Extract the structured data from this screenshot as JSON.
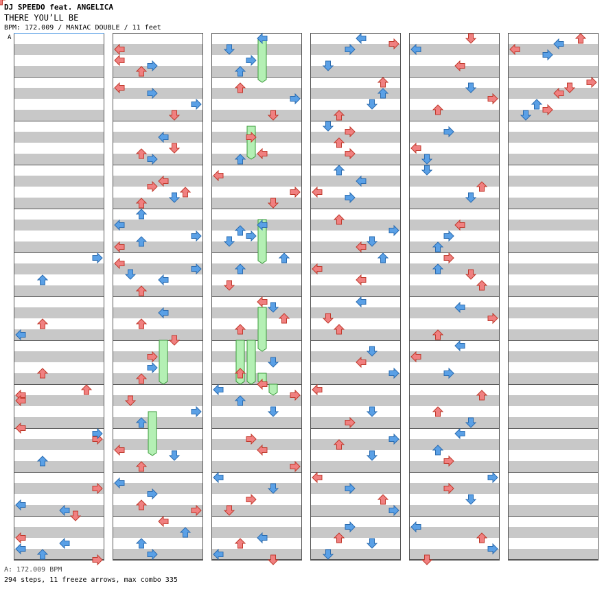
{
  "header": {
    "artist": "DJ SPEEDO feat. ANGELICA",
    "title": "THERE YOU’LL BE",
    "meta": "BPM: 172.009 / MANIAC DOUBLE / 11 feet",
    "bpm_marker": "A"
  },
  "footer": {
    "bpm_line": "A: 172.009 BPM",
    "stats": "294 steps, 11 freeze arrows, max combo 335"
  },
  "chart_data": {
    "type": "step-chart",
    "style": "double",
    "columns": 6,
    "measures_per_column": 12,
    "lanes": 8,
    "colors": {
      "quarter": "#f08080",
      "eighth": "#5aa0e6",
      "freeze": "#b4f0b4",
      "stripe": "#c8c8c8"
    },
    "notes": [
      [
        0,
        5,
        0,
        8,
        7
      ],
      [
        0,
        5,
        4,
        8,
        2
      ],
      [
        0,
        5,
        5,
        0
      ],
      [
        0,
        6,
        4,
        4,
        2
      ],
      [
        0,
        6,
        6,
        8,
        0
      ],
      [
        0,
        7,
        5,
        4,
        2
      ],
      [
        0,
        8,
        0,
        4,
        6
      ],
      [
        0,
        8,
        1,
        4,
        0
      ],
      [
        0,
        8,
        2,
        4,
        0
      ],
      [
        0,
        8,
        7,
        16,
        0
      ],
      [
        0,
        9,
        1,
        4,
        7
      ],
      [
        0,
        9,
        0,
        8,
        7
      ],
      [
        0,
        9,
        5,
        8,
        2
      ],
      [
        0,
        10,
        2,
        4,
        7
      ],
      [
        0,
        10,
        7,
        16,
        5
      ],
      [
        0,
        10,
        5,
        8,
        0
      ],
      [
        0,
        10,
        6,
        8,
        4
      ],
      [
        0,
        11,
        7,
        16,
        7
      ],
      [
        0,
        11,
        4,
        8,
        4
      ],
      [
        0,
        11,
        3,
        16,
        0
      ],
      [
        0,
        11,
        6,
        8,
        2
      ],
      [
        0,
        11,
        5,
        8,
        0
      ],
      [
        1,
        0,
        2,
        16,
        0
      ],
      [
        1,
        0,
        4,
        16,
        0
      ],
      [
        1,
        0,
        5,
        8,
        3
      ],
      [
        1,
        0,
        6,
        16,
        2
      ],
      [
        1,
        1,
        1,
        16,
        0
      ],
      [
        1,
        1,
        2,
        8,
        3
      ],
      [
        1,
        1,
        4,
        8,
        7
      ],
      [
        1,
        1,
        6,
        16,
        5
      ],
      [
        1,
        2,
        2,
        8,
        4
      ],
      [
        1,
        2,
        4,
        16,
        5
      ],
      [
        1,
        2,
        6,
        8,
        3
      ],
      [
        1,
        2,
        5,
        16,
        2
      ],
      [
        1,
        3,
        2,
        4,
        4
      ],
      [
        1,
        3,
        4,
        4,
        6
      ],
      [
        1,
        3,
        5,
        8,
        5
      ],
      [
        1,
        3,
        3,
        16,
        3
      ],
      [
        1,
        3,
        6,
        16,
        2
      ],
      [
        1,
        4,
        0,
        8,
        2
      ],
      [
        1,
        4,
        2,
        8,
        0
      ],
      [
        1,
        4,
        4,
        8,
        7
      ],
      [
        1,
        4,
        5,
        8,
        2
      ],
      [
        1,
        4,
        6,
        4,
        0
      ],
      [
        1,
        5,
        4,
        8,
        4
      ],
      [
        1,
        5,
        6,
        16,
        2
      ],
      [
        1,
        5,
        1,
        4,
        0
      ],
      [
        1,
        5,
        2,
        8,
        7
      ],
      [
        1,
        5,
        3,
        8,
        1
      ],
      [
        1,
        6,
        4,
        16,
        2
      ],
      [
        1,
        6,
        7,
        16,
        5
      ],
      [
        1,
        6,
        2,
        8,
        4
      ],
      [
        1,
        7,
        4,
        8,
        3
      ],
      [
        1,
        7,
        6,
        16,
        2
      ],
      [
        1,
        7,
        2,
        4,
        3
      ],
      [
        1,
        8,
        4,
        8,
        7
      ],
      [
        1,
        8,
        6,
        8,
        2
      ],
      [
        1,
        8,
        2,
        16,
        1
      ],
      [
        1,
        9,
        4,
        8,
        5
      ],
      [
        1,
        9,
        6,
        16,
        2
      ],
      [
        1,
        9,
        3,
        4,
        0
      ],
      [
        1,
        10,
        5,
        4,
        2
      ],
      [
        1,
        10,
        3,
        8,
        3
      ],
      [
        1,
        10,
        6,
        16,
        7
      ],
      [
        1,
        10,
        1,
        8,
        0
      ],
      [
        1,
        11,
        0,
        16,
        4
      ],
      [
        1,
        11,
        6,
        8,
        3
      ],
      [
        1,
        11,
        4,
        8,
        2
      ],
      [
        1,
        11,
        2,
        8,
        6
      ],
      [
        2,
        0,
        0,
        8,
        4
      ],
      [
        2,
        0,
        2,
        8,
        1
      ],
      [
        2,
        0,
        4,
        8,
        3
      ],
      [
        2,
        0,
        6,
        8,
        2
      ],
      [
        2,
        1,
        1,
        4,
        2
      ],
      [
        2,
        1,
        3,
        8,
        7
      ],
      [
        2,
        1,
        6,
        4,
        5
      ],
      [
        2,
        2,
        2,
        16,
        3
      ],
      [
        2,
        2,
        5,
        16,
        4
      ],
      [
        2,
        2,
        6,
        8,
        2
      ],
      [
        2,
        3,
        1,
        4,
        0
      ],
      [
        2,
        3,
        4,
        4,
        7
      ],
      [
        2,
        3,
        6,
        16,
        5
      ],
      [
        2,
        4,
        2,
        8,
        4
      ],
      [
        2,
        4,
        3,
        8,
        2
      ],
      [
        2,
        4,
        4,
        8,
        3
      ],
      [
        2,
        4,
        5,
        8,
        1
      ],
      [
        2,
        5,
        0,
        8,
        6
      ],
      [
        2,
        5,
        2,
        8,
        2
      ],
      [
        2,
        5,
        5,
        16,
        1
      ],
      [
        2,
        6,
        0,
        16,
        4
      ],
      [
        2,
        6,
        1,
        8,
        5
      ],
      [
        2,
        6,
        3,
        4,
        6
      ],
      [
        2,
        6,
        5,
        16,
        2
      ],
      [
        2,
        7,
        3,
        8,
        5
      ],
      [
        2,
        7,
        5,
        16,
        2
      ],
      [
        2,
        7,
        7,
        4,
        4
      ],
      [
        2,
        8,
        0,
        8,
        0
      ],
      [
        2,
        8,
        1,
        4,
        7
      ],
      [
        2,
        8,
        2,
        8,
        2
      ],
      [
        2,
        8,
        4,
        8,
        5
      ],
      [
        2,
        9,
        1,
        16,
        3
      ],
      [
        2,
        9,
        3,
        4,
        4
      ],
      [
        2,
        9,
        6,
        16,
        7
      ],
      [
        2,
        10,
        0,
        8,
        0
      ],
      [
        2,
        10,
        2,
        8,
        5
      ],
      [
        2,
        10,
        4,
        4,
        3
      ],
      [
        2,
        10,
        6,
        16,
        1
      ],
      [
        2,
        11,
        3,
        8,
        4
      ],
      [
        2,
        11,
        4,
        4,
        2
      ],
      [
        2,
        11,
        6,
        8,
        0
      ],
      [
        2,
        11,
        7,
        16,
        5
      ],
      [
        3,
        0,
        0,
        8,
        4
      ],
      [
        3,
        0,
        1,
        4,
        7
      ],
      [
        3,
        0,
        2,
        8,
        3
      ],
      [
        3,
        0,
        5,
        8,
        1
      ],
      [
        3,
        1,
        0,
        16,
        6
      ],
      [
        3,
        1,
        2,
        8,
        6
      ],
      [
        3,
        1,
        4,
        8,
        5
      ],
      [
        3,
        1,
        6,
        16,
        2
      ],
      [
        3,
        2,
        0,
        8,
        1
      ],
      [
        3,
        2,
        1,
        4,
        3
      ],
      [
        3,
        2,
        3,
        16,
        2
      ],
      [
        3,
        2,
        5,
        16,
        3
      ],
      [
        3,
        3,
        0,
        8,
        2
      ],
      [
        3,
        3,
        2,
        8,
        4
      ],
      [
        3,
        3,
        4,
        16,
        0
      ],
      [
        3,
        3,
        5,
        8,
        3
      ],
      [
        3,
        4,
        1,
        4,
        2
      ],
      [
        3,
        4,
        3,
        8,
        7
      ],
      [
        3,
        4,
        5,
        8,
        5
      ],
      [
        3,
        4,
        6,
        16,
        4
      ],
      [
        3,
        5,
        0,
        8,
        6
      ],
      [
        3,
        5,
        2,
        4,
        0
      ],
      [
        3,
        5,
        4,
        4,
        4
      ],
      [
        3,
        6,
        0,
        8,
        4
      ],
      [
        3,
        6,
        3,
        16,
        1
      ],
      [
        3,
        6,
        5,
        4,
        2
      ],
      [
        3,
        7,
        1,
        8,
        5
      ],
      [
        3,
        7,
        3,
        16,
        4
      ],
      [
        3,
        7,
        5,
        8,
        7
      ],
      [
        3,
        8,
        0,
        4,
        0
      ],
      [
        3,
        8,
        4,
        8,
        5
      ],
      [
        3,
        8,
        6,
        16,
        3
      ],
      [
        3,
        9,
        1,
        8,
        7
      ],
      [
        3,
        9,
        2,
        4,
        2
      ],
      [
        3,
        9,
        4,
        8,
        5
      ],
      [
        3,
        10,
        0,
        4,
        0
      ],
      [
        3,
        10,
        2,
        8,
        3
      ],
      [
        3,
        10,
        4,
        16,
        6
      ],
      [
        3,
        10,
        6,
        8,
        7
      ],
      [
        3,
        11,
        1,
        8,
        3
      ],
      [
        3,
        11,
        4,
        8,
        5
      ],
      [
        3,
        11,
        6,
        8,
        1
      ],
      [
        3,
        11,
        3,
        16,
        2
      ],
      [
        4,
        0,
        0,
        4,
        5
      ],
      [
        4,
        0,
        2,
        8,
        0
      ],
      [
        4,
        0,
        5,
        16,
        4
      ],
      [
        4,
        1,
        1,
        8,
        5
      ],
      [
        4,
        1,
        3,
        16,
        7
      ],
      [
        4,
        1,
        5,
        4,
        2
      ],
      [
        4,
        2,
        1,
        8,
        3
      ],
      [
        4,
        2,
        4,
        16,
        0
      ],
      [
        4,
        2,
        6,
        8,
        1
      ],
      [
        4,
        3,
        0,
        8,
        1
      ],
      [
        4,
        3,
        3,
        4,
        6
      ],
      [
        4,
        3,
        5,
        8,
        5
      ],
      [
        4,
        4,
        2,
        16,
        4
      ],
      [
        4,
        4,
        4,
        8,
        3
      ],
      [
        4,
        4,
        6,
        8,
        2
      ],
      [
        4,
        5,
        0,
        4,
        3
      ],
      [
        4,
        5,
        2,
        8,
        2
      ],
      [
        4,
        5,
        3,
        16,
        5
      ],
      [
        4,
        5,
        5,
        16,
        6
      ],
      [
        4,
        6,
        1,
        8,
        4
      ],
      [
        4,
        6,
        3,
        4,
        7
      ],
      [
        4,
        6,
        6,
        16,
        2
      ],
      [
        4,
        7,
        0,
        8,
        4
      ],
      [
        4,
        7,
        2,
        16,
        0
      ],
      [
        4,
        7,
        5,
        8,
        3
      ],
      [
        4,
        8,
        1,
        4,
        6
      ],
      [
        4,
        8,
        4,
        16,
        2
      ],
      [
        4,
        8,
        6,
        8,
        5
      ],
      [
        4,
        9,
        0,
        8,
        4
      ],
      [
        4,
        9,
        3,
        8,
        2
      ],
      [
        4,
        9,
        5,
        4,
        3
      ],
      [
        4,
        10,
        0,
        8,
        7
      ],
      [
        4,
        10,
        2,
        4,
        3
      ],
      [
        4,
        10,
        4,
        8,
        5
      ],
      [
        4,
        11,
        1,
        8,
        0
      ],
      [
        4,
        11,
        3,
        16,
        6
      ],
      [
        4,
        11,
        5,
        8,
        7
      ],
      [
        4,
        11,
        7,
        16,
        1
      ],
      [
        5,
        0,
        0,
        4,
        6
      ],
      [
        5,
        0,
        1,
        8,
        4
      ],
      [
        5,
        0,
        2,
        16,
        0
      ],
      [
        5,
        0,
        3,
        8,
        3
      ],
      [
        5,
        1,
        0,
        16,
        7
      ],
      [
        5,
        1,
        1,
        4,
        5
      ],
      [
        5,
        1,
        2,
        16,
        4
      ],
      [
        5,
        1,
        4,
        8,
        2
      ],
      [
        5,
        1,
        5,
        4,
        3
      ],
      [
        5,
        1,
        6,
        8,
        1
      ]
    ],
    "freezes": [
      [
        2,
        0,
        0,
        4,
        0.25
      ],
      [
        2,
        2,
        0,
        3,
        0.1875
      ],
      [
        2,
        4,
        1,
        4,
        0.25
      ],
      [
        2,
        6,
        1,
        4,
        0.25
      ],
      [
        1,
        6,
        7,
        4,
        0.25
      ],
      [
        2,
        6,
        7,
        2,
        0.25
      ],
      [
        2,
        6,
        7,
        3,
        0.25
      ],
      [
        2,
        7,
        5,
        2,
        0.0625
      ],
      [
        2,
        7,
        5,
        4,
        0.0625
      ],
      [
        2,
        7,
        7,
        5,
        0.0625
      ],
      [
        1,
        8,
        4,
        3,
        0.25
      ]
    ]
  }
}
